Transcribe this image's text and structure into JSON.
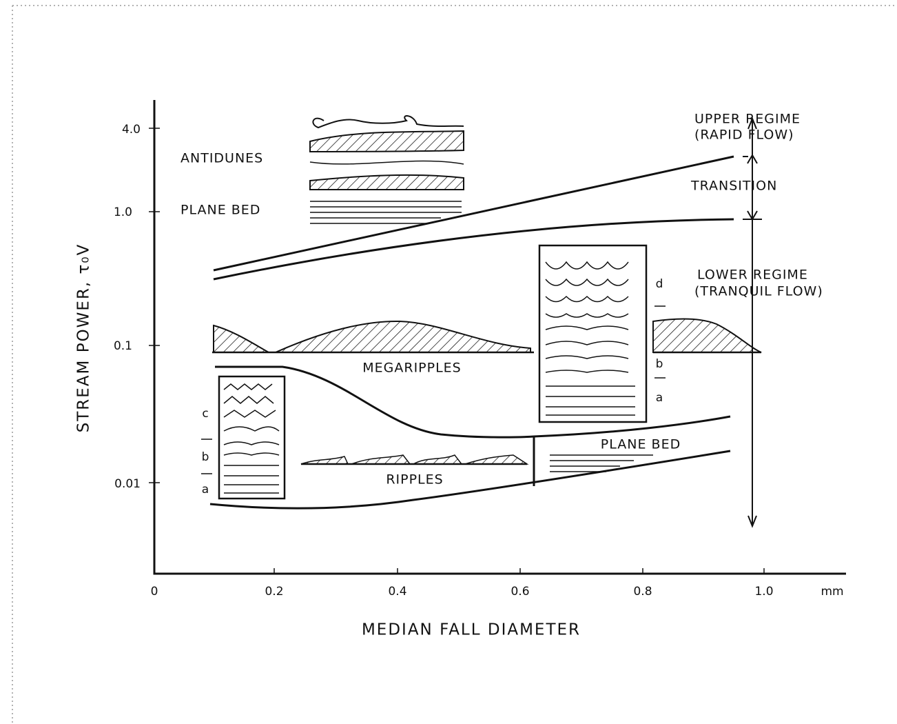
{
  "axes": {
    "y_label": "STREAM POWER, τ₀V",
    "x_label": "MEDIAN FALL DIAMETER",
    "x_unit": "mm",
    "x_ticks": [
      "0",
      "0.2",
      "0.4",
      "0.6",
      "0.8",
      "1.0"
    ],
    "y_ticks": [
      "4.0",
      "1.0",
      "0.1",
      "0.01"
    ]
  },
  "regions": {
    "antidunes": "ANTIDUNES",
    "plane_bed_upper": "PLANE BED",
    "megaripples": "MEGARIPPLES",
    "ripples": "RIPPLES",
    "plane_bed_lower": "PLANE BED"
  },
  "regimes": {
    "upper": [
      "UPPER REGIME",
      "(RAPID FLOW)"
    ],
    "transition": "TRANSITION",
    "lower": [
      "LOWER REGIME",
      "(TRANQUIL FLOW)"
    ]
  },
  "inset_labels": {
    "left": [
      "c",
      "b",
      "a"
    ],
    "right": [
      "d",
      "b",
      "a"
    ]
  }
}
